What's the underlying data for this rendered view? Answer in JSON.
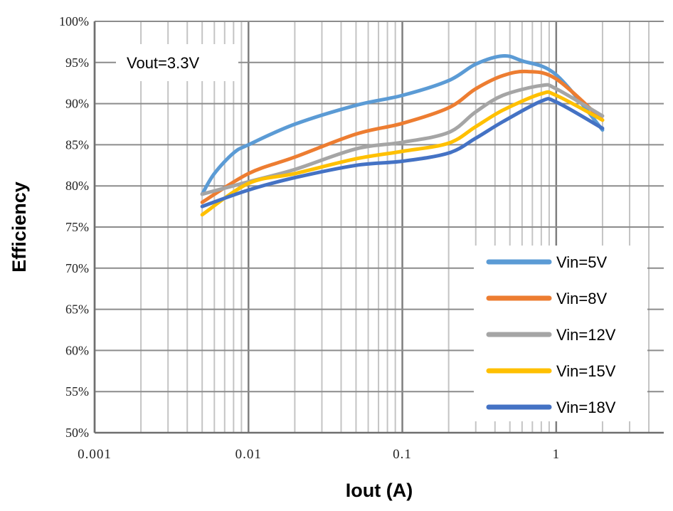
{
  "chart_data": {
    "type": "line",
    "xlabel": "Iout (A)",
    "ylabel": "Efficiency",
    "x_scale": "log",
    "xlim": [
      0.001,
      5
    ],
    "ylim": [
      50,
      100
    ],
    "x_ticks": [
      {
        "value": 0.001,
        "label": "0.001"
      },
      {
        "value": 0.01,
        "label": "0.01"
      },
      {
        "value": 0.1,
        "label": "0.1"
      },
      {
        "value": 1,
        "label": "1"
      }
    ],
    "y_ticks": [
      {
        "value": 50,
        "label": "50%"
      },
      {
        "value": 55,
        "label": "55%"
      },
      {
        "value": 60,
        "label": "60%"
      },
      {
        "value": 65,
        "label": "65%"
      },
      {
        "value": 70,
        "label": "70%"
      },
      {
        "value": 75,
        "label": "75%"
      },
      {
        "value": 80,
        "label": "80%"
      },
      {
        "value": 85,
        "label": "85%"
      },
      {
        "value": 90,
        "label": "90%"
      },
      {
        "value": 95,
        "label": "95%"
      },
      {
        "value": 100,
        "label": "100%"
      }
    ],
    "grid": true,
    "legend_position": "bottom-right",
    "annotation": "Vout=3.3V",
    "series": [
      {
        "name": "Vin=5V",
        "color": "#5b9bd5",
        "x": [
          0.005,
          0.006,
          0.008,
          0.01,
          0.02,
          0.05,
          0.1,
          0.2,
          0.3,
          0.45,
          0.6,
          1,
          2
        ],
        "y": [
          79,
          81.5,
          84,
          85,
          87.5,
          89.8,
          91,
          92.8,
          94.8,
          95.8,
          95.2,
          93.5,
          86.8
        ]
      },
      {
        "name": "Vin=8V",
        "color": "#ed7d31",
        "x": [
          0.005,
          0.01,
          0.02,
          0.05,
          0.1,
          0.2,
          0.3,
          0.45,
          0.65,
          1,
          2
        ],
        "y": [
          78,
          81.5,
          83.5,
          86.3,
          87.6,
          89.5,
          91.8,
          93.4,
          93.9,
          93,
          88
        ]
      },
      {
        "name": "Vin=12V",
        "color": "#a5a5a5",
        "x": [
          0.005,
          0.01,
          0.02,
          0.05,
          0.1,
          0.2,
          0.3,
          0.45,
          0.8,
          1,
          2
        ],
        "y": [
          79,
          80.5,
          82,
          84.5,
          85.3,
          86.5,
          89,
          91,
          92.2,
          91.8,
          88.5
        ]
      },
      {
        "name": "Vin=15V",
        "color": "#ffc000",
        "x": [
          0.005,
          0.01,
          0.02,
          0.05,
          0.1,
          0.2,
          0.3,
          0.45,
          0.8,
          1,
          2
        ],
        "y": [
          76.5,
          80.3,
          81.5,
          83.3,
          84.2,
          85.2,
          87.2,
          89.2,
          91.2,
          91,
          88
        ]
      },
      {
        "name": "Vin=18V",
        "color": "#4472c4",
        "x": [
          0.005,
          0.01,
          0.02,
          0.05,
          0.1,
          0.2,
          0.3,
          0.45,
          0.8,
          1,
          2
        ],
        "y": [
          77.5,
          79.5,
          81,
          82.5,
          83,
          84,
          85.8,
          87.8,
          90.3,
          90.2,
          87
        ]
      }
    ]
  }
}
